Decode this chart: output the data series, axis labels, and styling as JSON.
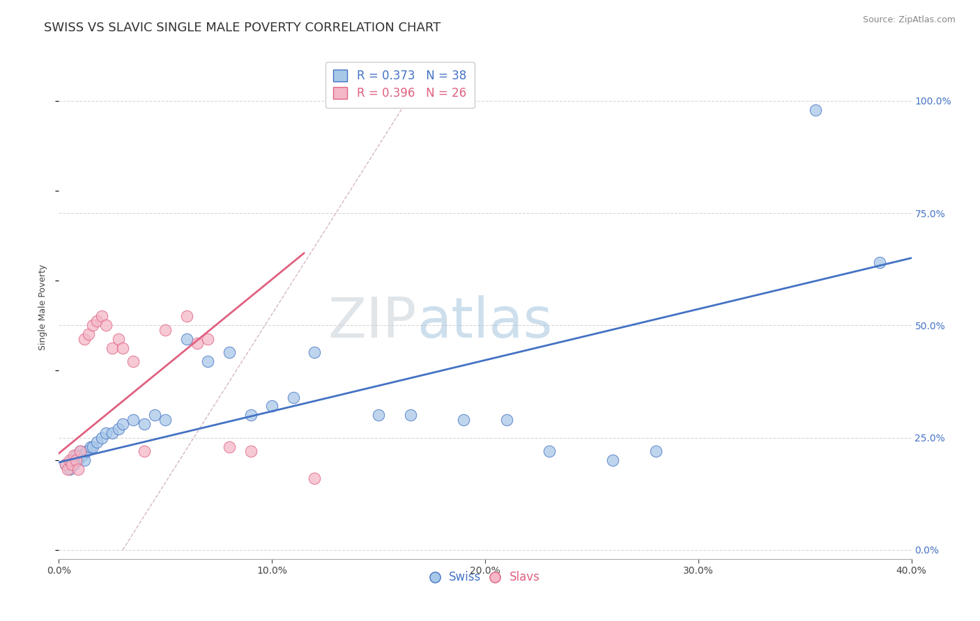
{
  "title": "SWISS VS SLAVIC SINGLE MALE POVERTY CORRELATION CHART",
  "source": "Source: ZipAtlas.com",
  "ylabel": "Single Male Poverty",
  "xlim": [
    0.0,
    0.4
  ],
  "ylim": [
    -0.02,
    1.1
  ],
  "xticks": [
    0.0,
    0.1,
    0.2,
    0.3,
    0.4
  ],
  "xticklabels": [
    "0.0%",
    "10.0%",
    "20.0%",
    "30.0%",
    "40.0%"
  ],
  "yticks_right": [
    0.0,
    0.25,
    0.5,
    0.75,
    1.0
  ],
  "yticklabels_right": [
    "0.0%",
    "25.0%",
    "50.0%",
    "75.0%",
    "100.0%"
  ],
  "swiss_R": 0.373,
  "swiss_N": 38,
  "slavs_R": 0.396,
  "slavs_N": 26,
  "swiss_color": "#a8c8e8",
  "slavs_color": "#f4b8c8",
  "swiss_line_color": "#4472c4",
  "slavs_line_color": "#e06080",
  "diag_color": "#d0b0b8",
  "watermark_zip": "ZIP",
  "watermark_atlas": "atlas",
  "swiss_x": [
    0.003,
    0.005,
    0.006,
    0.007,
    0.008,
    0.009,
    0.01,
    0.011,
    0.012,
    0.013,
    0.015,
    0.016,
    0.018,
    0.02,
    0.022,
    0.025,
    0.028,
    0.03,
    0.035,
    0.04,
    0.045,
    0.05,
    0.06,
    0.07,
    0.08,
    0.09,
    0.1,
    0.11,
    0.12,
    0.15,
    0.165,
    0.19,
    0.21,
    0.23,
    0.26,
    0.28,
    0.355,
    0.385
  ],
  "swiss_y": [
    0.19,
    0.18,
    0.2,
    0.19,
    0.21,
    0.2,
    0.22,
    0.21,
    0.2,
    0.22,
    0.23,
    0.23,
    0.24,
    0.25,
    0.26,
    0.26,
    0.27,
    0.28,
    0.29,
    0.28,
    0.3,
    0.29,
    0.47,
    0.42,
    0.44,
    0.3,
    0.32,
    0.34,
    0.44,
    0.3,
    0.3,
    0.29,
    0.29,
    0.22,
    0.2,
    0.22,
    0.98,
    0.64
  ],
  "slavs_x": [
    0.003,
    0.004,
    0.005,
    0.006,
    0.007,
    0.008,
    0.009,
    0.01,
    0.012,
    0.014,
    0.016,
    0.018,
    0.02,
    0.022,
    0.025,
    0.028,
    0.03,
    0.035,
    0.04,
    0.05,
    0.06,
    0.065,
    0.07,
    0.08,
    0.09,
    0.12
  ],
  "slavs_y": [
    0.19,
    0.18,
    0.2,
    0.19,
    0.21,
    0.2,
    0.18,
    0.22,
    0.47,
    0.48,
    0.5,
    0.51,
    0.52,
    0.5,
    0.45,
    0.47,
    0.45,
    0.42,
    0.22,
    0.49,
    0.52,
    0.46,
    0.47,
    0.23,
    0.22,
    0.16
  ],
  "title_fontsize": 13,
  "axis_fontsize": 9,
  "tick_fontsize": 10,
  "legend_fontsize": 12
}
